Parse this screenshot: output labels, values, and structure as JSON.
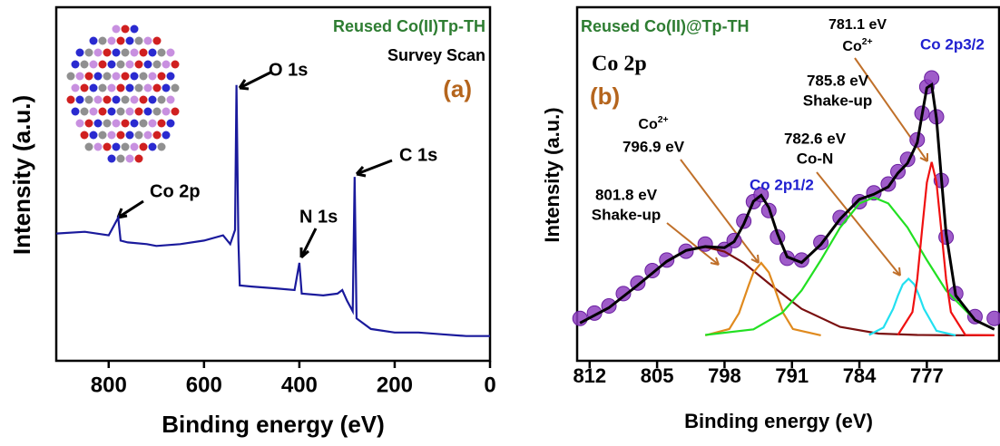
{
  "chart_data": [
    {
      "type": "line",
      "sample": "Reused Co(II)Tp-TH",
      "subtitle": "Survey Scan",
      "panel_label": "(a)",
      "xlabel": "Binding energy (eV)",
      "ylabel": "Intensity (a.u.)",
      "xlim": [
        910,
        0
      ],
      "xticks": [
        800,
        600,
        400,
        200,
        0
      ],
      "ylim": [
        0,
        100
      ],
      "x": [
        910,
        850,
        800,
        780,
        775,
        760,
        720,
        700,
        650,
        600,
        560,
        545,
        535,
        532,
        528,
        525,
        500,
        450,
        410,
        400,
        395,
        350,
        320,
        310,
        300,
        288,
        284,
        280,
        250,
        200,
        150,
        100,
        50,
        0
      ],
      "series": [
        {
          "color": "#1a1a9c",
          "values": [
            36,
            36.5,
            35.5,
            40.5,
            34,
            33.5,
            33,
            32.5,
            33,
            34,
            35.5,
            33,
            37,
            78,
            34,
            21.3,
            21,
            20.5,
            20,
            27.7,
            19,
            18.5,
            19,
            20,
            17,
            14,
            52,
            12,
            9,
            8,
            8,
            7.5,
            7,
            7
          ]
        }
      ],
      "annotations": [
        "O 1s",
        "C 1s",
        "N 1s",
        "Co 2p"
      ]
    },
    {
      "type": "line",
      "sample": "Reused Co(II)@Tp-TH",
      "subtitle": "Co 2p",
      "panel_label": "(b)",
      "xlabel": "Binding energy (eV)",
      "ylabel": "Intensity (a.u.)",
      "xlim": [
        813.3,
        769.5
      ],
      "xticks": [
        812,
        805,
        798,
        791,
        784,
        777
      ],
      "ylim": [
        0,
        100
      ],
      "series": [
        {
          "color": "#8e3fc0",
          "marker": "circle",
          "x": [
            813,
            811.5,
            810,
            808.5,
            807,
            805.5,
            804,
            802,
            800,
            798,
            797,
            796,
            795,
            794.2,
            793.4,
            792.5,
            791.5,
            790,
            788,
            786,
            784,
            782.5,
            781,
            780,
            779,
            778,
            777.5,
            777,
            776.5,
            776,
            775.5,
            775,
            774,
            772,
            770
          ],
          "values": [
            12,
            13.5,
            15.5,
            19,
            22,
            25.5,
            28.5,
            31,
            33,
            31.5,
            34,
            39.5,
            45,
            47,
            42.5,
            35,
            29,
            28.5,
            33.5,
            40.5,
            45,
            47.5,
            50,
            53.5,
            57,
            62.5,
            70,
            77.5,
            80,
            69,
            51,
            35,
            19,
            12.5,
            12
          ]
        },
        {
          "color": "#7a1010",
          "x": [
            813,
            810,
            807,
            804,
            802,
            800,
            798,
            796,
            793,
            790,
            786,
            782,
            778,
            774,
            770
          ],
          "values": [
            10.7,
            15.0,
            21.4,
            28.1,
            31.2,
            32.2,
            30.9,
            27.7,
            21.0,
            14.7,
            9.6,
            7.7,
            7.3,
            7.2,
            7.2
          ]
        },
        {
          "color": "#e08a1e",
          "x": [
            800,
            797.5,
            796.5,
            795.5,
            795,
            794.2,
            793.4,
            792.9,
            791.9,
            790.9,
            788
          ],
          "values": [
            7.2,
            9.0,
            13.5,
            21.3,
            25.0,
            27.7,
            25.0,
            21.3,
            13.5,
            9.0,
            7.2
          ]
        },
        {
          "color": "#22e022",
          "x": [
            800,
            795,
            792,
            790,
            788,
            786,
            784,
            782.5,
            781,
            779,
            777,
            775,
            772,
            770
          ],
          "values": [
            7.3,
            8.9,
            13.6,
            19.9,
            28.5,
            37.7,
            44.5,
            46.2,
            44.5,
            37.7,
            28.5,
            19.9,
            11.5,
            8.9
          ]
        },
        {
          "color": "#22e0f0",
          "x": [
            783,
            781.5,
            780.5,
            780,
            779.5,
            778.9,
            778.3,
            777.8,
            777.3,
            776,
            774
          ],
          "values": [
            7.3,
            9.4,
            14.7,
            18.4,
            21.6,
            23.2,
            21.6,
            18.4,
            14.7,
            8.5,
            7.2
          ]
        },
        {
          "color": "#f01010",
          "x": [
            780,
            778.5,
            778,
            777.5,
            777,
            776.5,
            776,
            775.5,
            775,
            774.5,
            773,
            770
          ],
          "values": [
            7.3,
            13.8,
            23.1,
            37.0,
            50.4,
            56.2,
            50.4,
            37.0,
            23.1,
            13.8,
            7.3,
            7.2
          ]
        },
        {
          "color": "#000000",
          "x": [
            813,
            810,
            807,
            804,
            802,
            800,
            798,
            797,
            796,
            795,
            794.2,
            793.4,
            792.5,
            791.5,
            790,
            788,
            786,
            784,
            782.5,
            781,
            780,
            779,
            778,
            777.5,
            777,
            776.5,
            776,
            775.5,
            775,
            774,
            772,
            770
          ],
          "values": [
            10.7,
            15.0,
            21.4,
            28.1,
            31.2,
            32.3,
            32.0,
            33.7,
            38.7,
            45.1,
            46.8,
            43.3,
            35.9,
            29.4,
            27.8,
            32.9,
            40.1,
            45.7,
            47.1,
            49.2,
            53.1,
            55.9,
            61.7,
            69.6,
            77.2,
            78.1,
            68.5,
            52.0,
            36.0,
            18.5,
            11.5,
            8.9
          ]
        }
      ],
      "annotations": [
        "781.1 eV",
        {
          "text": "Co",
          "sup": "2+"
        },
        "Co 2p3/2",
        "785.8 eV",
        "Shake-up",
        "782.6 eV",
        "Co-N",
        {
          "text": "Co",
          "sup": "2+"
        },
        "796.9 eV",
        "Co 2p1/2",
        "801.8 eV",
        "Shake-up"
      ]
    }
  ]
}
